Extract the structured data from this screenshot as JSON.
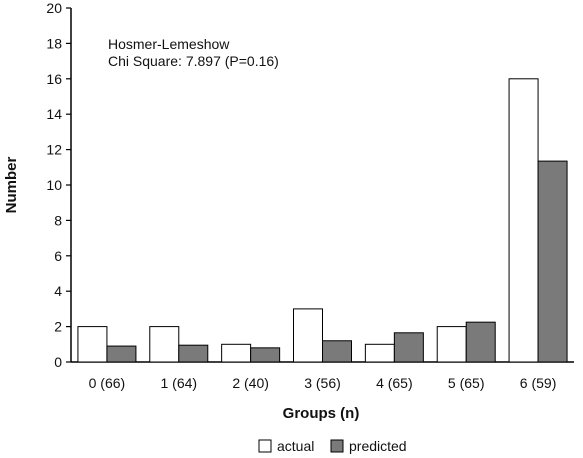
{
  "chart_data": {
    "type": "bar",
    "xlabel": "Groups (n)",
    "ylabel": "Number",
    "ylim": [
      0,
      20
    ],
    "yticks": [
      0,
      2,
      4,
      6,
      8,
      10,
      12,
      14,
      16,
      18,
      20
    ],
    "categories": [
      "0 (66)",
      "1 (64)",
      "2 (40)",
      "3 (56)",
      "4 (65)",
      "5 (65)",
      "6 (59)"
    ],
    "series": [
      {
        "name": "actual",
        "color": "#ffffff",
        "values": [
          2,
          2,
          1,
          3,
          1,
          2,
          16
        ]
      },
      {
        "name": "predicted",
        "color": "#7a7a7a",
        "values": [
          0.9,
          0.95,
          0.8,
          1.2,
          1.65,
          2.25,
          11.35
        ]
      }
    ],
    "annotation": [
      "Hosmer-Lemeshow",
      "Chi Square: 7.897 (P=0.16)"
    ],
    "legend_position": "bottom-center",
    "grid": false
  }
}
